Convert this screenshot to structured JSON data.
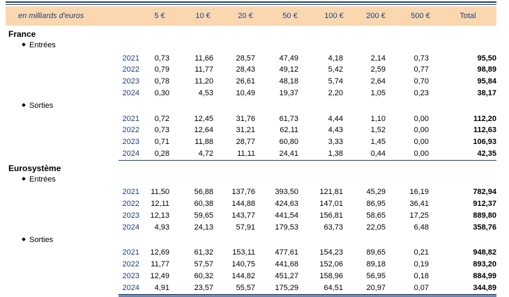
{
  "header": {
    "unit": "en milliards d'euros",
    "columns": [
      "5 €",
      "10 €",
      "20 €",
      "50 €",
      "100 €",
      "200 €",
      "500 €",
      "Total"
    ]
  },
  "sections": [
    {
      "region": "France",
      "groups": [
        {
          "label": "Entrées",
          "rows": [
            {
              "year": "2021",
              "values": [
                "0,73",
                "11,66",
                "28,57",
                "47,49",
                "4,18",
                "2,14",
                "0,73"
              ],
              "total": "95,50"
            },
            {
              "year": "2022",
              "values": [
                "0,79",
                "11,77",
                "28,43",
                "49,12",
                "5,42",
                "2,59",
                "0,77"
              ],
              "total": "98,89"
            },
            {
              "year": "2023",
              "values": [
                "0,78",
                "11,20",
                "26,61",
                "48,18",
                "5,74",
                "2,64",
                "0,70"
              ],
              "total": "95,84"
            },
            {
              "year": "2024",
              "values": [
                "0,30",
                "4,53",
                "10,49",
                "19,37",
                "2,20",
                "1,05",
                "0,23"
              ],
              "total": "38,17"
            }
          ]
        },
        {
          "label": "Sorties",
          "rows": [
            {
              "year": "2021",
              "values": [
                "0,72",
                "12,45",
                "31,76",
                "61,73",
                "4,44",
                "1,10",
                "0,00"
              ],
              "total": "112,20"
            },
            {
              "year": "2022",
              "values": [
                "0,73",
                "12,64",
                "31,21",
                "62,11",
                "4,43",
                "1,52",
                "0,00"
              ],
              "total": "112,63"
            },
            {
              "year": "2023",
              "values": [
                "0,71",
                "11,88",
                "28,77",
                "60,80",
                "3,33",
                "1,45",
                "0,00"
              ],
              "total": "106,93"
            },
            {
              "year": "2024",
              "values": [
                "0,28",
                "4,72",
                "11,11",
                "24,41",
                "1,38",
                "0,44",
                "0,00"
              ],
              "total": "42,35"
            }
          ]
        }
      ]
    },
    {
      "region": "Eurosystème",
      "groups": [
        {
          "label": "Entrées",
          "rows": [
            {
              "year": "2021",
              "values": [
                "11,50",
                "56,88",
                "137,76",
                "393,50",
                "121,81",
                "45,29",
                "16,19"
              ],
              "total": "782,94"
            },
            {
              "year": "2022",
              "values": [
                "12,11",
                "60,38",
                "144,88",
                "424,63",
                "147,01",
                "86,95",
                "36,41"
              ],
              "total": "912,37"
            },
            {
              "year": "2023",
              "values": [
                "12,13",
                "59,65",
                "143,77",
                "441,54",
                "156,81",
                "58,65",
                "17,25"
              ],
              "total": "889,80"
            },
            {
              "year": "2024",
              "values": [
                "4,93",
                "24,13",
                "57,91",
                "179,53",
                "63,73",
                "22,05",
                "6,48"
              ],
              "total": "358,76"
            }
          ]
        },
        {
          "label": "Sorties",
          "rows": [
            {
              "year": "2021",
              "values": [
                "12,69",
                "61,32",
                "153,11",
                "477,61",
                "154,23",
                "89,65",
                "0,21"
              ],
              "total": "948,82"
            },
            {
              "year": "2022",
              "values": [
                "11,77",
                "57,57",
                "140,75",
                "441,68",
                "152,06",
                "89,18",
                "0,19"
              ],
              "total": "893,20"
            },
            {
              "year": "2023",
              "values": [
                "12,49",
                "60,32",
                "144,82",
                "451,27",
                "158,96",
                "56,95",
                "0,18"
              ],
              "total": "884,99"
            },
            {
              "year": "2024",
              "values": [
                "4,91",
                "23,57",
                "55,57",
                "175,29",
                "64,51",
                "20,97",
                "0,07"
              ],
              "total": "344,89"
            }
          ]
        }
      ]
    }
  ]
}
